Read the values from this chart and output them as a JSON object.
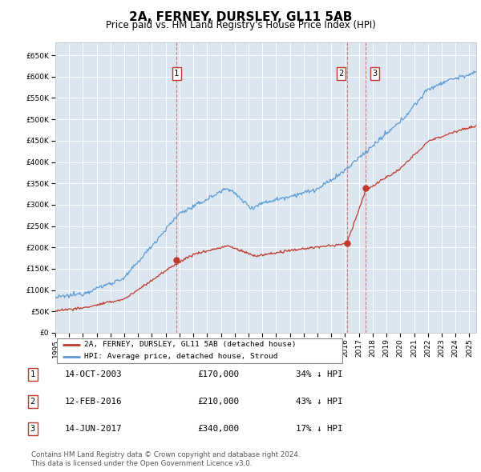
{
  "title": "2A, FERNEY, DURSLEY, GL11 5AB",
  "subtitle": "Price paid vs. HM Land Registry's House Price Index (HPI)",
  "ylim": [
    0,
    680000
  ],
  "yticks": [
    0,
    50000,
    100000,
    150000,
    200000,
    250000,
    300000,
    350000,
    400000,
    450000,
    500000,
    550000,
    600000,
    650000
  ],
  "hpi_color": "#5b9bd5",
  "price_color": "#c0392b",
  "bg_color": "#dce6f1",
  "sale_year_nums": [
    2003.79,
    2016.12,
    2017.46
  ],
  "sale_prices": [
    170000,
    210000,
    340000
  ],
  "sale_labels": [
    "1",
    "2",
    "3"
  ],
  "sale_pct": [
    "34% ↓ HPI",
    "43% ↓ HPI",
    "17% ↓ HPI"
  ],
  "sale_date_strs": [
    "14-OCT-2003",
    "12-FEB-2016",
    "14-JUN-2017"
  ],
  "legend_label_red": "2A, FERNEY, DURSLEY, GL11 5AB (detached house)",
  "legend_label_blue": "HPI: Average price, detached house, Stroud",
  "footer1": "Contains HM Land Registry data © Crown copyright and database right 2024.",
  "footer2": "This data is licensed under the Open Government Licence v3.0.",
  "xlim": [
    1995,
    2025.5
  ],
  "xtick_years": [
    1995,
    1996,
    1997,
    1998,
    1999,
    2000,
    2001,
    2002,
    2003,
    2004,
    2005,
    2006,
    2007,
    2008,
    2009,
    2010,
    2011,
    2012,
    2013,
    2014,
    2015,
    2016,
    2017,
    2018,
    2019,
    2020,
    2021,
    2022,
    2023,
    2024,
    2025
  ]
}
